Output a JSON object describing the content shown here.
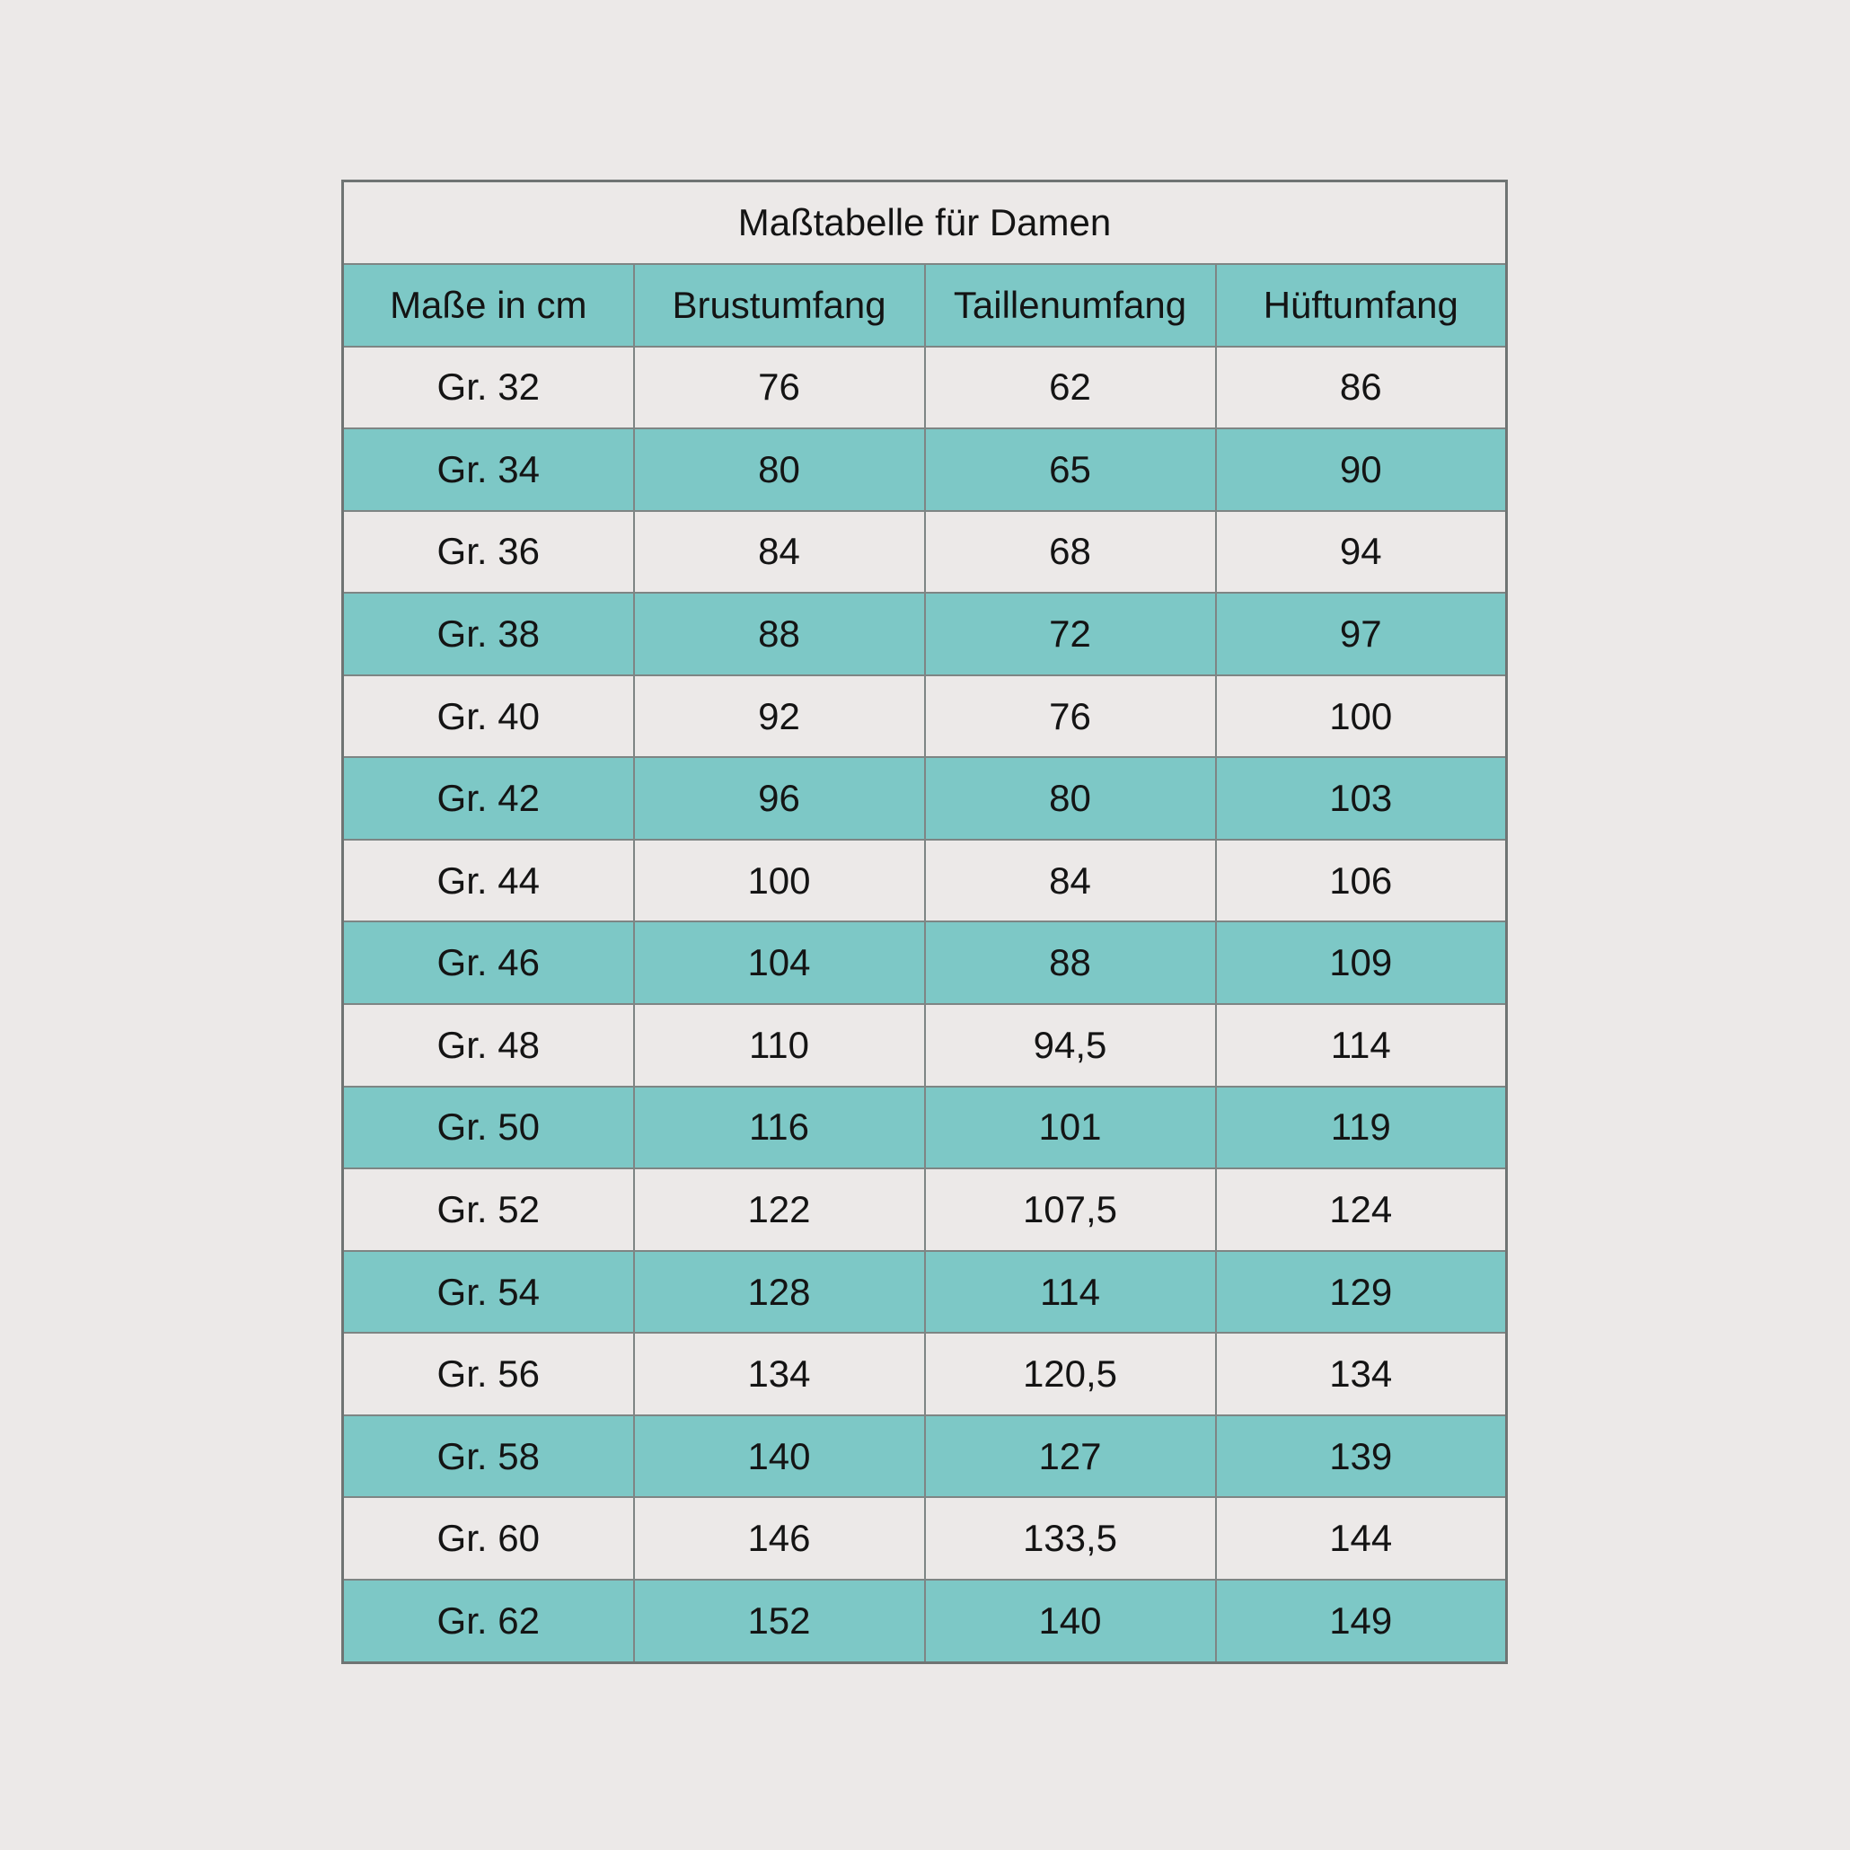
{
  "page": {
    "description_visible_content_only": "Size chart table for women on plain light background"
  },
  "colors": {
    "page_bg": "#ECE9E8",
    "light_row": "#ECE9E8",
    "teal": "#7DC8C6",
    "border_outer": "#6F7473",
    "border_inner": "#7E8584",
    "text": "#141414"
  },
  "table": {
    "title": "Maßtabelle für Damen",
    "headers": [
      "Maße in cm",
      "Brustumfang",
      "Taillenumfang",
      "Hüftumfang"
    ],
    "rows": [
      {
        "size": "Gr. 32",
        "bust": "76",
        "waist": "62",
        "hip": "86"
      },
      {
        "size": "Gr. 34",
        "bust": "80",
        "waist": "65",
        "hip": "90"
      },
      {
        "size": "Gr. 36",
        "bust": "84",
        "waist": "68",
        "hip": "94"
      },
      {
        "size": "Gr. 38",
        "bust": "88",
        "waist": "72",
        "hip": "97"
      },
      {
        "size": "Gr. 40",
        "bust": "92",
        "waist": "76",
        "hip": "100"
      },
      {
        "size": "Gr. 42",
        "bust": "96",
        "waist": "80",
        "hip": "103"
      },
      {
        "size": "Gr. 44",
        "bust": "100",
        "waist": "84",
        "hip": "106"
      },
      {
        "size": "Gr. 46",
        "bust": "104",
        "waist": "88",
        "hip": "109"
      },
      {
        "size": "Gr. 48",
        "bust": "110",
        "waist": "94,5",
        "hip": "114"
      },
      {
        "size": "Gr. 50",
        "bust": "116",
        "waist": "101",
        "hip": "119"
      },
      {
        "size": "Gr. 52",
        "bust": "122",
        "waist": "107,5",
        "hip": "124"
      },
      {
        "size": "Gr. 54",
        "bust": "128",
        "waist": "114",
        "hip": "129"
      },
      {
        "size": "Gr. 56",
        "bust": "134",
        "waist": "120,5",
        "hip": "134"
      },
      {
        "size": "Gr. 58",
        "bust": "140",
        "waist": "127",
        "hip": "139"
      },
      {
        "size": "Gr. 60",
        "bust": "146",
        "waist": "133,5",
        "hip": "144"
      },
      {
        "size": "Gr. 62",
        "bust": "152",
        "waist": "140",
        "hip": "149"
      }
    ]
  },
  "chart_data": {
    "type": "table",
    "title": "Maßtabelle für Damen",
    "columns": [
      "Maße in cm",
      "Brustumfang",
      "Taillenumfang",
      "Hüftumfang"
    ],
    "rows": [
      [
        "Gr. 32",
        76,
        62,
        86
      ],
      [
        "Gr. 34",
        80,
        65,
        90
      ],
      [
        "Gr. 36",
        84,
        68,
        94
      ],
      [
        "Gr. 38",
        88,
        72,
        97
      ],
      [
        "Gr. 40",
        92,
        76,
        100
      ],
      [
        "Gr. 42",
        96,
        80,
        103
      ],
      [
        "Gr. 44",
        100,
        84,
        106
      ],
      [
        "Gr. 46",
        104,
        88,
        109
      ],
      [
        "Gr. 48",
        110,
        94.5,
        114
      ],
      [
        "Gr. 50",
        116,
        101,
        119
      ],
      [
        "Gr. 52",
        122,
        107.5,
        124
      ],
      [
        "Gr. 54",
        128,
        114,
        129
      ],
      [
        "Gr. 56",
        134,
        120.5,
        134
      ],
      [
        "Gr. 58",
        140,
        127,
        139
      ],
      [
        "Gr. 60",
        146,
        133.5,
        144
      ],
      [
        "Gr. 62",
        152,
        140,
        149
      ]
    ],
    "units": "cm",
    "layout": "title row + teal header row + 16 data rows with alternating light/teal striping, all cells center-aligned"
  }
}
